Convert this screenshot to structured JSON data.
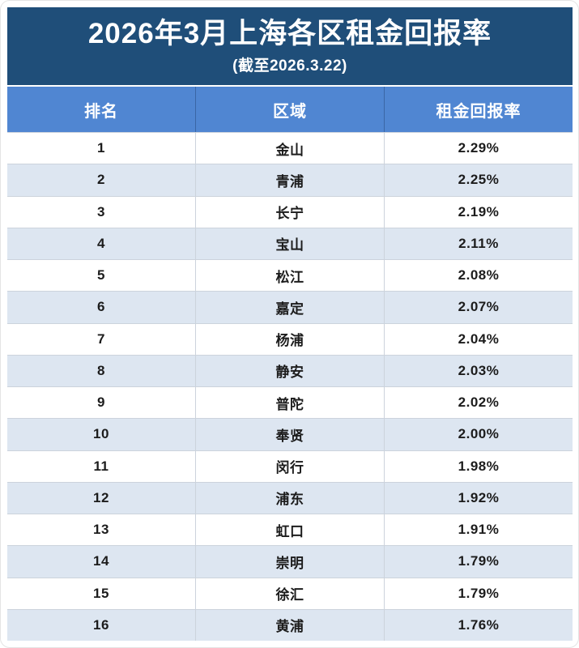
{
  "card": {
    "title": "2026年3月上海各区租金回报率",
    "subtitle": "(截至2026.3.22)"
  },
  "colors": {
    "title_bar_bg": "#1f4e79",
    "header_bg": "#5086d2",
    "alt_row_bg": "#dde6f1",
    "row_bg": "#ffffff",
    "header_text": "#ffffff",
    "body_text": "#1c1c1c",
    "grid_line": "#ccd3dc"
  },
  "chart_data": {
    "type": "table",
    "title": "2026年3月上海各区租金回报率",
    "subtitle": "(截至2026.3.22)",
    "columns": [
      "排名",
      "区域",
      "租金回报率"
    ],
    "rows": [
      {
        "rank": "1",
        "district": "金山",
        "yield": "2.29%"
      },
      {
        "rank": "2",
        "district": "青浦",
        "yield": "2.25%"
      },
      {
        "rank": "3",
        "district": "长宁",
        "yield": "2.19%"
      },
      {
        "rank": "4",
        "district": "宝山",
        "yield": "2.11%"
      },
      {
        "rank": "5",
        "district": "松江",
        "yield": "2.08%"
      },
      {
        "rank": "6",
        "district": "嘉定",
        "yield": "2.07%"
      },
      {
        "rank": "7",
        "district": "杨浦",
        "yield": "2.04%"
      },
      {
        "rank": "8",
        "district": "静安",
        "yield": "2.03%"
      },
      {
        "rank": "9",
        "district": "普陀",
        "yield": "2.02%"
      },
      {
        "rank": "10",
        "district": "奉贤",
        "yield": "2.00%"
      },
      {
        "rank": "11",
        "district": "闵行",
        "yield": "1.98%"
      },
      {
        "rank": "12",
        "district": "浦东",
        "yield": "1.92%"
      },
      {
        "rank": "13",
        "district": "虹口",
        "yield": "1.91%"
      },
      {
        "rank": "14",
        "district": "崇明",
        "yield": "1.79%"
      },
      {
        "rank": "15",
        "district": "徐汇",
        "yield": "1.79%"
      },
      {
        "rank": "16",
        "district": "黄浦",
        "yield": "1.76%"
      }
    ]
  }
}
